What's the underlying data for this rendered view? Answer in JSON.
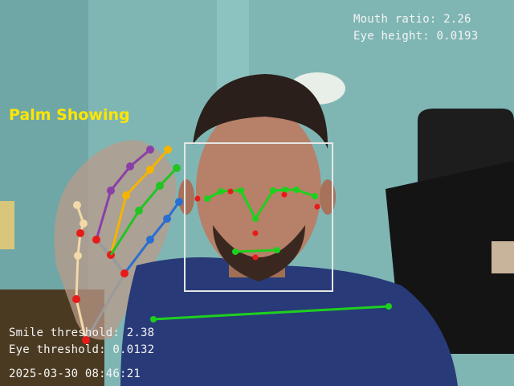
{
  "overlay": {
    "mouth_ratio": "Mouth ratio: 2.26",
    "eye_height": "Eye height: 0.0193",
    "gesture": "Palm Showing",
    "smile_threshold": "Smile threshold: 2.38",
    "eye_threshold": "Eye threshold: 0.0132",
    "timestamp": "2025-03-30 08:46:21"
  },
  "colors": {
    "hud_text": "#f4f4f4",
    "gesture_text": "#ffe600",
    "face_box": "#e6e6e6",
    "landmark_line": "#1ed01e",
    "landmark_point": "#e81a1a",
    "finger_thumb": "#f2d9a8",
    "finger_index": "#8a3fa8",
    "finger_middle": "#f5b400",
    "finger_ring": "#22c422",
    "finger_pinky": "#2a6fd0",
    "palm": "#9a9a9a"
  },
  "icons": {
    "face_detection": "bounding-box",
    "hand_tracking": "hand-skeleton",
    "landmarks": "dot-markers"
  }
}
